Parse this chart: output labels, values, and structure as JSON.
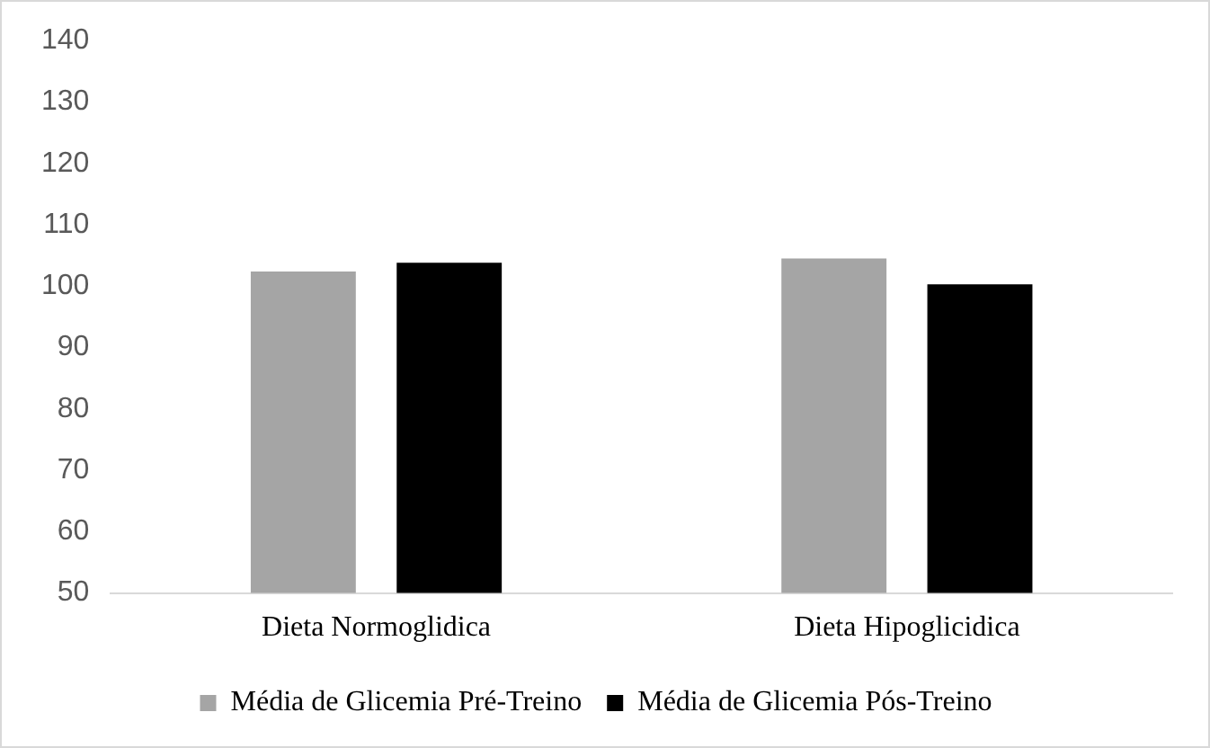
{
  "chart_data": {
    "type": "bar",
    "categories": [
      "Dieta Normoglidica",
      "Dieta Hipoglicidica"
    ],
    "series": [
      {
        "name": "Média de Glicemia Pré-Treino",
        "color": "#a5a5a5",
        "values": [
          102.4,
          104.5
        ]
      },
      {
        "name": "Média de Glicemia Pós-Treino",
        "color": "#000000",
        "values": [
          103.8,
          100.3
        ]
      }
    ],
    "ylim": [
      50,
      140
    ],
    "yticks": [
      50,
      60,
      70,
      80,
      90,
      100,
      110,
      120,
      130,
      140
    ],
    "grid": false,
    "legend": "bottom"
  }
}
